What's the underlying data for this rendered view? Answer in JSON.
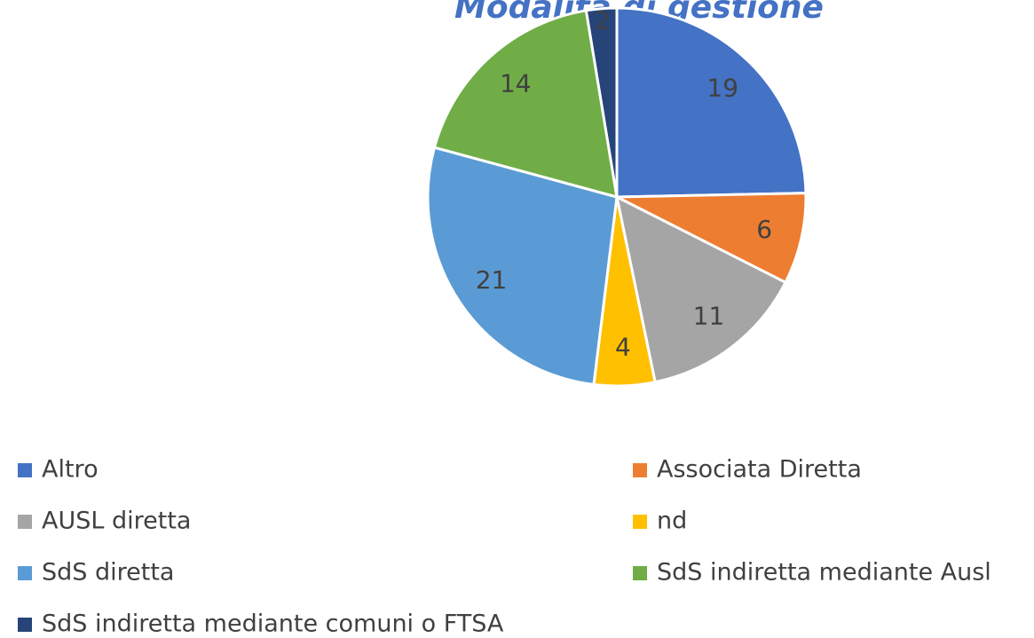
{
  "chart_data": {
    "type": "pie",
    "title": "Modalità di gestione",
    "categories": [
      "Altro",
      "Associata Diretta",
      "AUSL diretta",
      "nd",
      "SdS diretta",
      "SdS indiretta mediante Ausl",
      "SdS indiretta mediante comuni o FTSA"
    ],
    "values": [
      19,
      6,
      11,
      4,
      21,
      14,
      2
    ],
    "colors": [
      "#4472c4",
      "#ed7d31",
      "#a5a5a5",
      "#ffc000",
      "#5b9bd5",
      "#70ad47",
      "#264478"
    ],
    "legend": "bottom"
  }
}
